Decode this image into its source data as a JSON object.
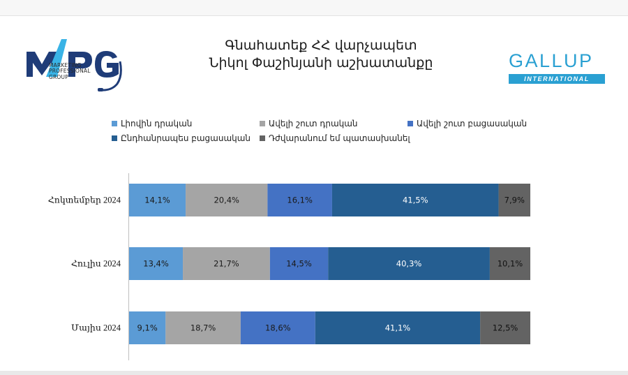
{
  "header": {
    "title_line1": "Գնահատեք ՀՀ վարչապետ",
    "title_line2": "Նիկոլ Փաշինյանի աշխատանքը"
  },
  "logos": {
    "mpg": {
      "letters": "MPG",
      "subtitle_lines": [
        "MARKETING",
        "PROFESSIONAL",
        "GROUP"
      ]
    },
    "gallup": {
      "word": "GALLUP",
      "band": "INTERNATIONAL"
    }
  },
  "colors": {
    "mpg_blue": "#1f3c78",
    "mpg_cyan": "#39b3e6",
    "gallup_blue": "#2aa0d2"
  },
  "chart_data": {
    "type": "bar",
    "orientation": "horizontal",
    "stacked": true,
    "percent_stacked": true,
    "title": "",
    "xlabel": "",
    "ylabel": "",
    "categories": [
      "Հոկտեմբեր 2024",
      "Հուլիս 2024",
      "Մայիս 2024"
    ],
    "series": [
      {
        "name": "Լիովին դրական",
        "color": "#5b9bd5",
        "label_color": "#1a1a1a",
        "values": [
          14.1,
          13.4,
          9.1
        ],
        "labels": [
          "14,1%",
          "13,4%",
          "9,1%"
        ]
      },
      {
        "name": "Ավելի շուտ դրական",
        "color": "#a5a5a5",
        "label_color": "#1a1a1a",
        "values": [
          20.4,
          21.7,
          18.7
        ],
        "labels": [
          "20,4%",
          "21,7%",
          "18,7%"
        ]
      },
      {
        "name": "Ավելի շուտ բացասական",
        "color": "#4472c4",
        "label_color": "#1a1a1a",
        "values": [
          16.1,
          14.5,
          18.6
        ],
        "labels": [
          "16,1%",
          "14,5%",
          "18,6%"
        ]
      },
      {
        "name": "Ընդհանրապես բացասական",
        "color": "#255e91",
        "label_color": "#ffffff",
        "values": [
          41.5,
          40.3,
          41.1
        ],
        "labels": [
          "41,5%",
          "40,3%",
          "41,1%"
        ]
      },
      {
        "name": "Դժվարանում եմ պատասխանել",
        "color": "#636363",
        "label_color": "#111111",
        "values": [
          7.9,
          10.1,
          12.5
        ],
        "labels": [
          "7,9%",
          "10,1%",
          "12,5%"
        ]
      }
    ],
    "legend_position": "top",
    "grid": false
  }
}
